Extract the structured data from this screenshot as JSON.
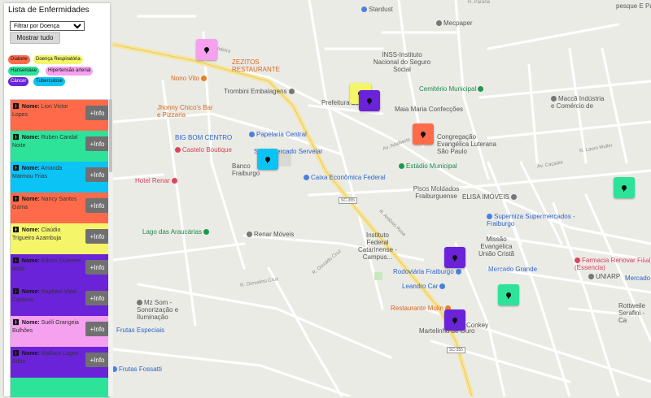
{
  "panel": {
    "title": "Lista de Enfermidades",
    "filter_selected": "Filtrar por Doença",
    "show_all": "Mostrar tudo"
  },
  "legend": [
    {
      "label": "Diabete",
      "color": "#ff6b4a"
    },
    {
      "label": "Doença Respiratória",
      "color": "#f5f56a"
    },
    {
      "label": "Hanseníase",
      "color": "#2de39a"
    },
    {
      "label": "Hipertensão arterial",
      "color": "#f6a0f0"
    },
    {
      "label": "Câncer",
      "color": "#6a23d8"
    },
    {
      "label": "Tuberculose",
      "color": "#0bc3f5"
    }
  ],
  "patients": [
    {
      "prefix": "Nome:",
      "name": "Lion Victor Lopes",
      "button": "+Info",
      "color": "#ff6b4a"
    },
    {
      "prefix": "Nome:",
      "name": "Ruben Candal Noite",
      "button": "+Info",
      "color": "#2de39a"
    },
    {
      "prefix": "Nome:",
      "name": "Amanda Marmou Frias",
      "button": "+Info",
      "color": "#0bc3f5"
    },
    {
      "prefix": "Nome:",
      "name": "Nancy Santos Gama",
      "button": "+Info",
      "color": "#ff6b4a"
    },
    {
      "prefix": "Nome:",
      "name": "Claúdio Trigueiro Azambuja",
      "button": "+Info",
      "color": "#f5f56a"
    },
    {
      "prefix": "Nome:",
      "name": "Edson Guterres Mota",
      "button": "+Info",
      "color": "#6a23d8"
    },
    {
      "prefix": "Nome:",
      "name": "Raphael Vidal Cardoso",
      "button": "+Info",
      "color": "#6a23d8"
    },
    {
      "prefix": "Nome:",
      "name": "Suéli Grangeia Bulhões",
      "button": "+Info",
      "color": "#f6a0f0"
    },
    {
      "prefix": "Nome:",
      "name": "Wallace Lages Adão",
      "button": "+Info",
      "color": "#6a23d8"
    },
    {
      "prefix": "Nome:",
      "name": "",
      "button": "",
      "color": "#2de39a"
    }
  ],
  "map": {
    "places": [
      {
        "name": "Stardust",
        "cls": "blue"
      },
      {
        "name": "Mecpaper",
        "cls": "dark"
      },
      {
        "name": "pesque E Pa",
        "cls": "dark"
      },
      {
        "name": "INSS-Instituto Nacional do Seguro Social",
        "cls": "dark"
      },
      {
        "name": "ZEZITOS RESTAURANTE",
        "cls": "orange"
      },
      {
        "name": "Nono Vito",
        "cls": "orange"
      },
      {
        "name": "Cemitério Municipal",
        "cls": "green"
      },
      {
        "name": "Trombini Embalagens",
        "cls": "dark"
      },
      {
        "name": "Prefeitura de",
        "cls": "dark"
      },
      {
        "name": "Maia Maria Confecções",
        "cls": "dark"
      },
      {
        "name": "Maccã Indústria e Comércio de",
        "cls": "dark"
      },
      {
        "name": "Jhonny Chico's Bar e Pizzaria",
        "cls": "orange"
      },
      {
        "name": "Congregação Evangélica Luterana São Paulo",
        "cls": "dark"
      },
      {
        "name": "BIG BOM CENTRO",
        "cls": "blue"
      },
      {
        "name": "Papelaria Central",
        "cls": "blue"
      },
      {
        "name": "Castelo Boutique",
        "cls": "red"
      },
      {
        "name": "Supermercado Servelar",
        "cls": "blue"
      },
      {
        "name": "Banco Fraiburgo",
        "cls": "dark"
      },
      {
        "name": "Caixa Econômica Federal",
        "cls": "blue"
      },
      {
        "name": "Estádio Municipal",
        "cls": "green"
      },
      {
        "name": "Hotel Renar",
        "cls": "red"
      },
      {
        "name": "Pisos Moldados Fraiburguense",
        "cls": "dark"
      },
      {
        "name": "ELISA IMÓVEIS",
        "cls": "dark"
      },
      {
        "name": "Superniza Supermercados - Fraiburgo",
        "cls": "blue"
      },
      {
        "name": "Lago das Araucárias",
        "cls": "green"
      },
      {
        "name": "Renar Móveis",
        "cls": "dark"
      },
      {
        "name": "Instituto Federal Catarinense - Campus...",
        "cls": "dark"
      },
      {
        "name": "Missão Evangélica União Cristã",
        "cls": "dark"
      },
      {
        "name": "Farmacia Renovar Filial (Essencia)",
        "cls": "red"
      },
      {
        "name": "Mercado Grande",
        "cls": "blue"
      },
      {
        "name": "Rodoviária Fraiburgo",
        "cls": "blue"
      },
      {
        "name": "UNIARP",
        "cls": "dark"
      },
      {
        "name": "Mercado Bo",
        "cls": "blue"
      },
      {
        "name": "Leandro Car",
        "cls": "blue"
      },
      {
        "name": "Mz Som - Sonorização e Iluminação",
        "cls": "dark"
      },
      {
        "name": "Restaurante Molin",
        "cls": "orange"
      },
      {
        "name": "Martelinho de Ouro",
        "cls": "dark"
      },
      {
        "name": "Rottweile Serafini - Ca",
        "cls": "dark"
      },
      {
        "name": "Frutas Especiais",
        "cls": "blue"
      },
      {
        "name": "Frutas Fossatti",
        "cls": "blue"
      },
      {
        "name": "Conkey",
        "cls": "dark"
      }
    ],
    "roads": [
      "Av. Videira",
      "R. Paraná",
      "SC-355",
      "SC-355",
      "R. Lauro Muller",
      "Av. Caçador",
      "R. Antônio Rosa",
      "Av. Adalberto",
      "R. Dorvalino Cruz",
      "R. Osvaldo Cruz"
    ],
    "markers": [
      {
        "color": "#f6a0f0"
      },
      {
        "color": "#f5f56a"
      },
      {
        "color": "#6a23d8"
      },
      {
        "color": "#ff6b4a"
      },
      {
        "color": "#0bc3f5"
      },
      {
        "color": "#2de39a"
      },
      {
        "color": "#6a23d8"
      },
      {
        "color": "#2de39a"
      },
      {
        "color": "#6a23d8"
      }
    ]
  }
}
